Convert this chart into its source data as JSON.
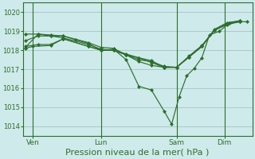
{
  "background_color": "#ceeaea",
  "grid_color": "#aacaca",
  "line_color": "#2d6e2d",
  "marker_color": "#2d6e2d",
  "xlabel": "Pression niveau de la mer( hPa )",
  "xlabel_fontsize": 8,
  "ylim": [
    1013.5,
    1020.5
  ],
  "yticks": [
    1014,
    1015,
    1016,
    1017,
    1018,
    1019,
    1020
  ],
  "xlim": [
    -0.1,
    9.0
  ],
  "day_labels": [
    "Ven",
    "Lun",
    "Sam",
    "Dim"
  ],
  "day_positions": [
    0.3,
    3.0,
    6.0,
    7.9
  ],
  "vline_positions": [
    0.3,
    3.0,
    6.0,
    7.9
  ],
  "series": [
    [
      0.0,
      1018.15,
      0.5,
      1018.85,
      1.0,
      1018.8,
      1.5,
      1018.75,
      2.0,
      1018.55,
      2.5,
      1018.35,
      3.0,
      1018.0,
      3.5,
      1018.05,
      4.0,
      1017.5,
      4.5,
      1016.1,
      5.0,
      1015.9,
      5.5,
      1014.8,
      5.8,
      1014.1,
      6.1,
      1015.55,
      6.4,
      1016.65,
      6.7,
      1017.05,
      7.0,
      1017.6,
      7.3,
      1018.8,
      7.7,
      1019.0,
      8.1,
      1019.45,
      8.5,
      1019.5,
      8.8,
      1019.5
    ],
    [
      0.0,
      1018.85,
      0.5,
      1018.85,
      1.0,
      1018.75,
      1.5,
      1018.75,
      2.5,
      1018.4,
      3.0,
      1018.15,
      3.5,
      1018.1,
      4.0,
      1017.75,
      4.5,
      1017.4,
      5.0,
      1017.2,
      5.5,
      1017.1,
      6.0,
      1017.1,
      6.5,
      1017.65,
      7.0,
      1018.2,
      7.5,
      1019.1,
      8.0,
      1019.45,
      8.5,
      1019.55
    ],
    [
      0.0,
      1018.5,
      0.5,
      1018.75,
      1.0,
      1018.75,
      1.5,
      1018.65,
      2.5,
      1018.3,
      3.0,
      1018.05,
      3.5,
      1018.0,
      4.0,
      1017.8,
      4.5,
      1017.6,
      5.0,
      1017.45,
      5.5,
      1017.1,
      6.0,
      1017.1,
      6.5,
      1017.7,
      7.0,
      1018.25,
      7.5,
      1019.05,
      8.0,
      1019.4,
      8.5,
      1019.55
    ],
    [
      0.0,
      1018.2,
      0.5,
      1018.3,
      1.0,
      1018.3,
      1.5,
      1018.6,
      2.5,
      1018.2,
      3.0,
      1018.0,
      3.5,
      1018.0,
      4.0,
      1017.75,
      4.5,
      1017.6,
      5.0,
      1017.35,
      5.5,
      1017.1,
      6.0,
      1017.1,
      6.5,
      1017.65,
      7.0,
      1018.2,
      7.5,
      1019.05,
      8.0,
      1019.4,
      8.5,
      1019.5
    ],
    [
      0.0,
      1018.1,
      0.3,
      1018.2,
      1.0,
      1018.25,
      1.5,
      1018.6,
      2.5,
      1018.2,
      3.0,
      1018.0,
      3.5,
      1018.0,
      4.0,
      1017.75,
      4.5,
      1017.5,
      5.0,
      1017.4,
      5.5,
      1017.15,
      6.0,
      1017.1,
      6.5,
      1017.65,
      7.0,
      1018.2,
      7.5,
      1019.05,
      8.0,
      1019.35,
      8.5,
      1019.5
    ]
  ]
}
